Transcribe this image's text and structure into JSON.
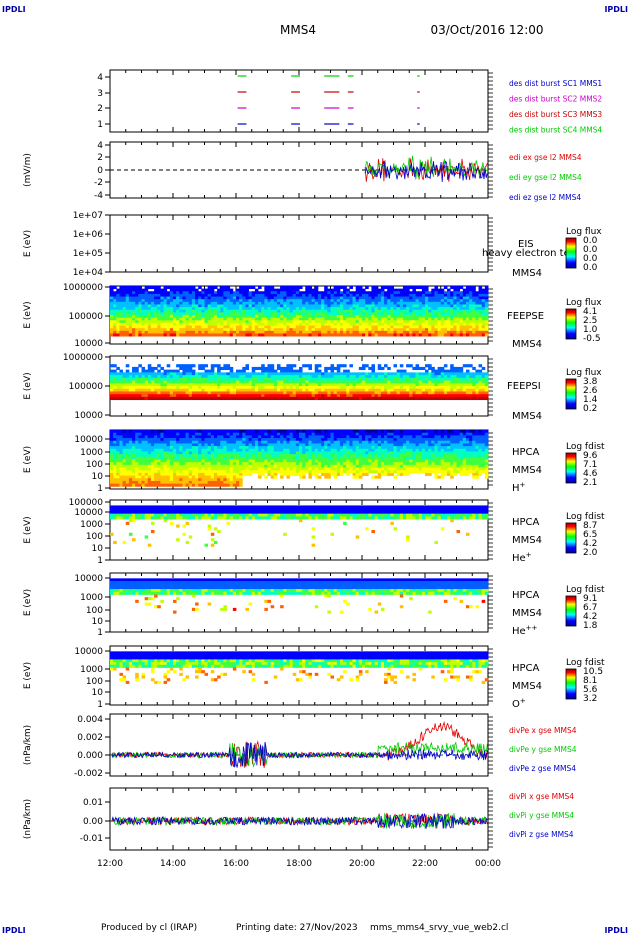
{
  "header": {
    "logo_left": "IPDLI",
    "logo_right": "IPDLI",
    "mission": "MMS4",
    "datetime": "03/Oct/2016 12:00"
  },
  "footer": {
    "credit": "Produced by cl (IRAP)",
    "printing": "Printing date: 27/Nov/2023",
    "file": "mms_mms4_srvy_vue_web2.cl",
    "logo_left": "IPDLI",
    "logo_right": "IPDLI"
  },
  "colors": {
    "mms1": "#0000cc",
    "mms2": "#cc00cc",
    "mms3": "#cc0000",
    "mms4": "#00cc00",
    "x": "#e00000",
    "y": "#00cc00",
    "z": "#0000cc"
  },
  "xaxis": {
    "ticks": [
      "12:00",
      "14:00",
      "16:00",
      "18:00",
      "20:00",
      "22:00",
      "00:00"
    ]
  },
  "chart_data": [
    {
      "id": "burst",
      "type": "line",
      "y_ticks": [
        "4",
        "3",
        "2",
        "1"
      ],
      "legend": [
        {
          "label": "des dist burst SC1 MMS1",
          "color": "#0000cc"
        },
        {
          "label": "des dist burst SC2 MMS2",
          "color": "#cc00cc"
        },
        {
          "label": "des dist burst SC3 MMS3",
          "color": "#cc0000"
        },
        {
          "label": "des dist burst SC4 MMS4",
          "color": "#00cc00"
        }
      ],
      "intervals_hours": [
        [
          4.05,
          4.3
        ],
        [
          5.75,
          6.0
        ],
        [
          6.8,
          7.25
        ],
        [
          7.55,
          7.7
        ],
        [
          9.75,
          9.8
        ]
      ]
    },
    {
      "id": "edi",
      "type": "line",
      "ylabel": "(mV/m)",
      "y_ticks": [
        "4",
        "2",
        "0",
        "-2",
        "-4"
      ],
      "ylim": [
        -4,
        4
      ],
      "data_start_hour": 8.1,
      "legend": [
        {
          "label": "edi ex gse l2 MMS4",
          "color": "#e00000"
        },
        {
          "label": "edi ey gse l2 MMS4",
          "color": "#00cc00"
        },
        {
          "label": "edi ez gse l2 MMS4",
          "color": "#0000cc"
        }
      ]
    },
    {
      "id": "eis",
      "type": "heatmap",
      "ylabel": "E (eV)",
      "y_ticks": [
        "1e+07",
        "1e+06",
        "1e+05",
        "1e+04"
      ],
      "labels": [
        "EIS",
        "MMS4"
      ],
      "overlay": "heavy electron te",
      "cbar_title": "Log flux",
      "cbar_ticks": [
        "0.0",
        "0.0",
        "0.0",
        "0.0"
      ]
    },
    {
      "id": "feepse",
      "type": "heatmap",
      "ylabel": "E (eV)",
      "y_ticks": [
        "1000000",
        "100000",
        "10000"
      ],
      "labels": [
        "FEEPSE",
        "MMS4"
      ],
      "cbar_title": "Log flux",
      "cbar_ticks": [
        "4.1",
        "2.5",
        "1.0",
        "-0.5"
      ]
    },
    {
      "id": "feepsi",
      "type": "heatmap",
      "ylabel": "E (eV)",
      "y_ticks": [
        "1000000",
        "100000",
        "10000"
      ],
      "labels": [
        "FEEPSI",
        "MMS4"
      ],
      "cbar_title": "Log flux",
      "cbar_ticks": [
        "3.8",
        "2.6",
        "1.4",
        "0.2"
      ]
    },
    {
      "id": "hpca_h",
      "type": "heatmap",
      "ylabel": "E (eV)",
      "y_ticks": [
        "10000",
        "1000",
        "100",
        "10",
        "1"
      ],
      "labels": [
        "HPCA",
        "MMS4",
        "H+"
      ],
      "cbar_title": "Log fdist",
      "cbar_ticks": [
        "9.6",
        "7.1",
        "4.6",
        "2.1"
      ]
    },
    {
      "id": "hpca_he",
      "type": "heatmap",
      "ylabel": "E (eV)",
      "y_ticks": [
        "100000",
        "10000",
        "1000",
        "100",
        "10",
        "1"
      ],
      "labels": [
        "HPCA",
        "MMS4",
        "He+"
      ],
      "cbar_title": "Log fdist",
      "cbar_ticks": [
        "8.7",
        "6.5",
        "4.2",
        "2.0"
      ]
    },
    {
      "id": "hpca_hepp",
      "type": "heatmap",
      "ylabel": "E (eV)",
      "y_ticks": [
        "10000",
        "1000",
        "100",
        "10",
        "1"
      ],
      "labels": [
        "HPCA",
        "MMS4",
        "He++"
      ],
      "cbar_title": "Log fdist",
      "cbar_ticks": [
        "9.1",
        "6.7",
        "4.2",
        "1.8"
      ]
    },
    {
      "id": "hpca_o",
      "type": "heatmap",
      "ylabel": "E (eV)",
      "y_ticks": [
        "10000",
        "1000",
        "100",
        "10",
        "1"
      ],
      "labels": [
        "HPCA",
        "MMS4",
        "O+"
      ],
      "cbar_title": "Log fdist",
      "cbar_ticks": [
        "10.5",
        "8.1",
        "5.6",
        "3.2"
      ]
    },
    {
      "id": "divpe",
      "type": "line",
      "ylabel": "(nPa/km)",
      "y_ticks": [
        "0.004",
        "0.002",
        "0.000",
        "-0.002"
      ],
      "ylim": [
        -0.002,
        0.004
      ],
      "legend": [
        {
          "label": "divPe x gse MMS4",
          "color": "#e00000"
        },
        {
          "label": "divPe y gse MMS4",
          "color": "#00cc00"
        },
        {
          "label": "divPe z gse MMS4",
          "color": "#0000cc"
        }
      ]
    },
    {
      "id": "divpi",
      "type": "line",
      "ylabel": "(nPa/km)",
      "y_ticks": [
        "0.01",
        "0.00",
        "-0.01"
      ],
      "ylim": [
        -0.015,
        0.015
      ],
      "legend": [
        {
          "label": "divPi x gse MMS4",
          "color": "#e00000"
        },
        {
          "label": "divPi y gse MMS4",
          "color": "#00cc00"
        },
        {
          "label": "divPi z gse MMS4",
          "color": "#0000cc"
        }
      ]
    }
  ]
}
